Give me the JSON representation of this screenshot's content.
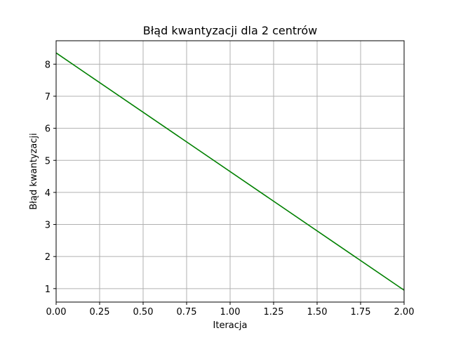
{
  "chart_data": {
    "type": "line",
    "title": "Błąd kwantyzacji dla 2 centrów",
    "xlabel": "Iteracja",
    "ylabel": "Błąd kwantyzacji",
    "xlim": [
      0,
      2
    ],
    "ylim": [
      0.58,
      8.73
    ],
    "x_ticks": [
      0,
      0.25,
      0.5,
      0.75,
      1.0,
      1.25,
      1.5,
      1.75,
      2.0
    ],
    "x_tick_labels": [
      "0.00",
      "0.25",
      "0.50",
      "0.75",
      "1.00",
      "1.25",
      "1.50",
      "1.75",
      "2.00"
    ],
    "y_ticks": [
      1,
      2,
      3,
      4,
      5,
      6,
      7,
      8
    ],
    "y_tick_labels": [
      "1",
      "2",
      "3",
      "4",
      "5",
      "6",
      "7",
      "8"
    ],
    "grid": true,
    "series": [
      {
        "x": [
          0,
          2
        ],
        "y": [
          8.35,
          0.95
        ],
        "color": "#008000"
      }
    ]
  }
}
